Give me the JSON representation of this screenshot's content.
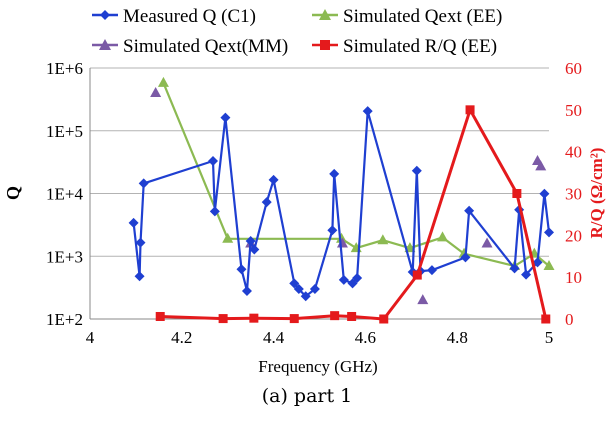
{
  "caption": "(a) part 1",
  "chart_data": {
    "type": "line",
    "xlabel": "Frequency (GHz)",
    "ylabel": "Q",
    "y2label": "R/Q (Ω/cm²)",
    "xlim": [
      4,
      5
    ],
    "ylim": [
      100,
      1000000
    ],
    "y_scale": "log",
    "y2lim": [
      0,
      60
    ],
    "x_ticks": [
      "4",
      "4.2",
      "4.4",
      "4.6",
      "4.8",
      "5"
    ],
    "x_tick_values": [
      4,
      4.2,
      4.4,
      4.6,
      4.8,
      5
    ],
    "y_ticks": [
      "1E+2",
      "1E+3",
      "1E+4",
      "1E+5",
      "1E+6"
    ],
    "y_tick_values": [
      100,
      1000,
      10000,
      100000,
      1000000
    ],
    "y2_ticks": [
      "0",
      "10",
      "20",
      "30",
      "40",
      "50",
      "60"
    ],
    "y2_tick_values": [
      0,
      10,
      20,
      30,
      40,
      50,
      60
    ],
    "grid": "horizontal",
    "legend_position": "top",
    "series": [
      {
        "name": "Measured Q (C1)",
        "axis": "left",
        "color": "#1f3fd1",
        "marker": "diamond",
        "line": true,
        "x": [
          4.095,
          4.108,
          4.11,
          4.117,
          4.268,
          4.272,
          4.295,
          4.33,
          4.342,
          4.35,
          4.358,
          4.385,
          4.4,
          4.445,
          4.455,
          4.47,
          4.49,
          4.528,
          4.532,
          4.553,
          4.572,
          4.582,
          4.605,
          4.703,
          4.712,
          4.72,
          4.745,
          4.818,
          4.826,
          4.925,
          4.935,
          4.95,
          4.975,
          4.99,
          5.0
        ],
        "y": [
          3400,
          480,
          1650,
          14500,
          33000,
          5200,
          162000,
          620,
          280,
          1750,
          1280,
          7300,
          16500,
          370,
          300,
          230,
          300,
          2600,
          20500,
          420,
          370,
          450,
          205000,
          560,
          23000,
          580,
          600,
          960,
          5300,
          640,
          5500,
          510,
          800,
          9900,
          2400
        ]
      },
      {
        "name": "Simulated Qext (EE)",
        "axis": "left",
        "color": "#8cba52",
        "marker": "triangle",
        "line": true,
        "x": [
          4.16,
          4.3,
          4.548,
          4.58,
          4.638,
          4.697,
          4.768,
          4.815,
          4.925,
          4.968,
          5.0
        ],
        "y": [
          580000,
          1900,
          1900,
          1350,
          1800,
          1350,
          2000,
          1100,
          700,
          1100,
          700
        ]
      },
      {
        "name": "Simulated Qext(MM)",
        "axis": "left",
        "color": "#7b5aa6",
        "marker": "triangle",
        "line": false,
        "x": [
          4.143,
          4.35,
          4.55,
          4.725,
          4.865,
          4.975,
          4.982
        ],
        "y": [
          400000,
          1600,
          1600,
          200,
          1600,
          33000,
          27000
        ]
      },
      {
        "name": "Simulated R/Q (EE)",
        "axis": "right",
        "color": "#e41a1c",
        "marker": "square",
        "line": true,
        "x": [
          4.153,
          4.29,
          4.357,
          4.445,
          4.533,
          4.57,
          4.64,
          4.713,
          4.828,
          4.93,
          4.993
        ],
        "y": [
          0.6,
          0.1,
          0.2,
          0.1,
          0.8,
          0.6,
          0.0,
          10.5,
          50.0,
          30.0,
          0.0
        ]
      }
    ]
  }
}
